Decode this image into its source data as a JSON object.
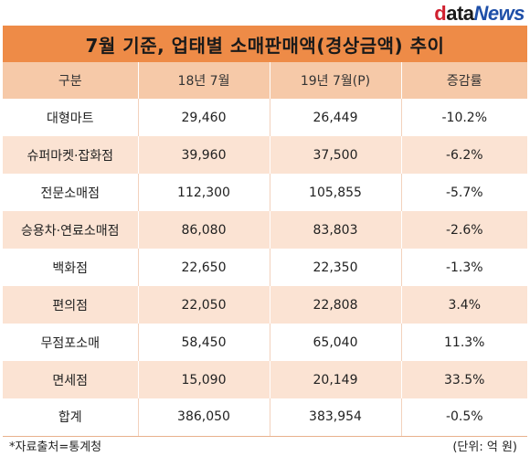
{
  "logo": {
    "d": "d",
    "ata": "ata",
    "news": "News"
  },
  "chart_data": {
    "type": "table",
    "title": "7월 기준, 업태별 소매판매액(경상금액) 추이",
    "columns": [
      "구분",
      "18년 7월",
      "19년 7월(P)",
      "증감률"
    ],
    "rows": [
      [
        "대형마트",
        "29,460",
        "26,449",
        "-10.2%"
      ],
      [
        "슈퍼마켓·잡화점",
        "39,960",
        "37,500",
        "-6.2%"
      ],
      [
        "전문소매점",
        "112,300",
        "105,855",
        "-5.7%"
      ],
      [
        "승용차·연료소매점",
        "86,080",
        "83,803",
        "-2.6%"
      ],
      [
        "백화점",
        "22,650",
        "22,350",
        "-1.3%"
      ],
      [
        "편의점",
        "22,050",
        "22,808",
        "3.4%"
      ],
      [
        "무점포소매",
        "58,450",
        "65,040",
        "11.3%"
      ],
      [
        "면세점",
        "15,090",
        "20,149",
        "33.5%"
      ],
      [
        "합계",
        "386,050",
        "383,954",
        "-0.5%"
      ]
    ]
  },
  "footer": {
    "source": "*자료출처=통계청",
    "unit": "(단위: 억 원)"
  }
}
